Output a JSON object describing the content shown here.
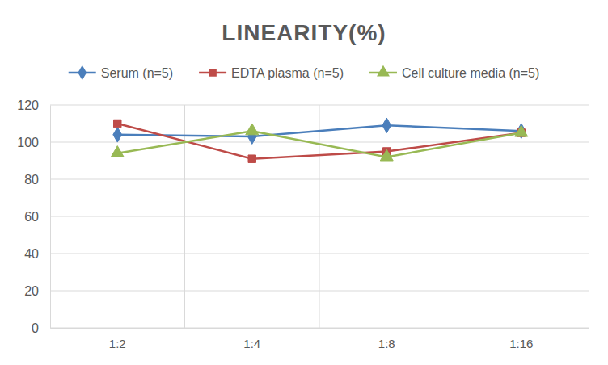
{
  "chart_data": {
    "type": "line",
    "title": "LINEARITY(%)",
    "categories": [
      "1:2",
      "1:4",
      "1:8",
      "1:16"
    ],
    "series": [
      {
        "name": "Serum (n=5)",
        "color": "#4a7ebb",
        "marker": "diamond",
        "values": [
          104,
          103,
          109,
          106
        ]
      },
      {
        "name": "EDTA plasma (n=5)",
        "color": "#be4b48",
        "marker": "square",
        "values": [
          110,
          91,
          95,
          105
        ]
      },
      {
        "name": "Cell culture media (n=5)",
        "color": "#98b954",
        "marker": "triangle",
        "values": [
          94,
          106,
          92,
          105
        ]
      }
    ],
    "ylim": [
      0,
      120
    ],
    "yticks": [
      0,
      20,
      40,
      60,
      80,
      100,
      120
    ],
    "grid": true,
    "legend": "top"
  }
}
